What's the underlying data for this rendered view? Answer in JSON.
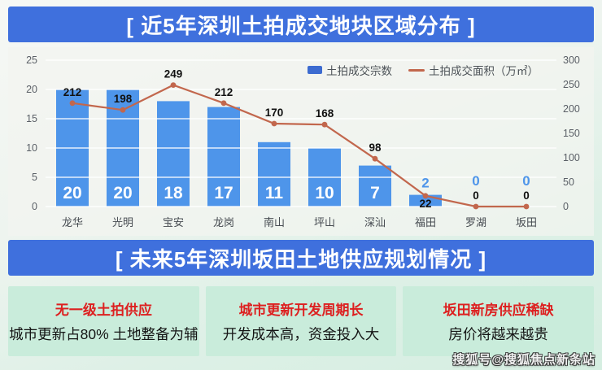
{
  "banners": {
    "top": {
      "text": "[ 近5年深圳土拍成交地块区域分布 ]",
      "bg": "#3f70dd"
    },
    "middle": {
      "text": "[ 未来5年深圳坂田土地供应规划情况 ]",
      "bg": "#3f70dd"
    }
  },
  "chart_data": {
    "type": "bar",
    "categories": [
      "龙华",
      "光明",
      "宝安",
      "龙岗",
      "南山",
      "坪山",
      "深汕",
      "福田",
      "罗湖",
      "坂田"
    ],
    "series": [
      {
        "name": "土拍成交宗数",
        "type": "bar",
        "axis": "left",
        "color": "#4e95ea",
        "values": [
          20,
          20,
          18,
          17,
          11,
          10,
          7,
          2,
          0,
          0
        ]
      },
      {
        "name": "土拍成交面积（万㎡）",
        "type": "line",
        "axis": "right",
        "color": "#c2674d",
        "values": [
          212,
          198,
          249,
          212,
          170,
          168,
          98,
          22,
          0,
          0
        ]
      }
    ],
    "left_axis": {
      "ticks": [
        0,
        5,
        10,
        15,
        20,
        25
      ],
      "range": [
        0,
        25
      ]
    },
    "right_axis": {
      "ticks": [
        0,
        50,
        100,
        150,
        200,
        250,
        300
      ],
      "range": [
        0,
        300
      ]
    },
    "legend_position": "top-right",
    "grid": true,
    "title": ""
  },
  "info_boxes": [
    {
      "title": "无一级土拍供应",
      "body": "城市更新占80% 土地整备为辅"
    },
    {
      "title": "城市更新开发周期长",
      "body": "开发成本高，资金投入大"
    },
    {
      "title": "坂田新房供应稀缺",
      "body": "房价将越来越贵"
    }
  ],
  "watermark": {
    "text": "搜狐号@搜狐焦点新条站"
  },
  "colors": {
    "banner_bg": "#3f70dd",
    "bar": "#4e95ea",
    "line": "#c2674d",
    "legend_swatch_bar": "#3c6bd0",
    "box_bg": "#c9ecdb",
    "box_title": "#dd2020",
    "axis_text": "#5a5f66",
    "category_text": "#454a50",
    "bar_label_inside": "#ffffff",
    "bar_label_outside": "#4e95ea",
    "line_label": "#111111"
  }
}
